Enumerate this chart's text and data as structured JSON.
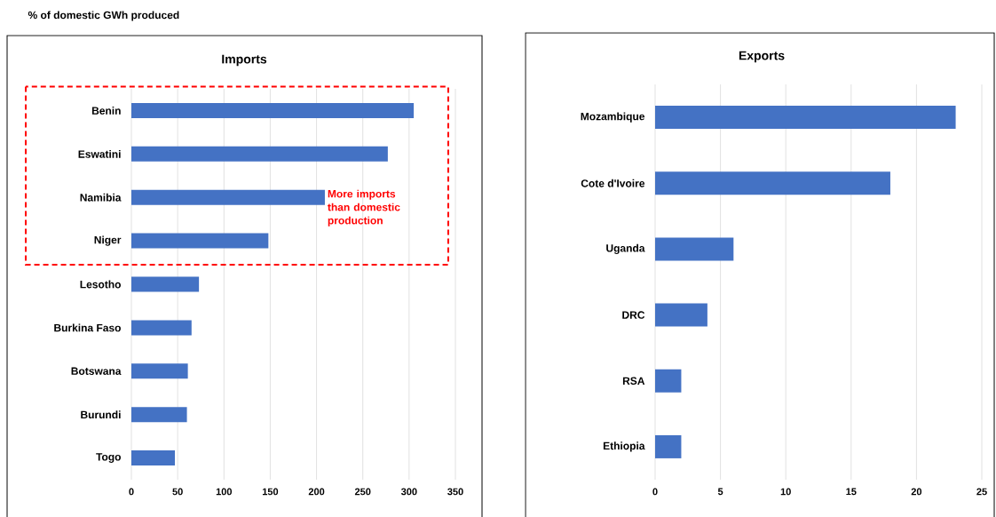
{
  "chart_data": [
    {
      "type": "bar",
      "orientation": "horizontal",
      "title": "Imports",
      "annotations": [
        "% of domestic GWh produced",
        "More imports than domestic production"
      ],
      "categories": [
        "Benin",
        "Eswatini",
        "Namibia",
        "Niger",
        "Lesotho",
        "Burkina Faso",
        "Botswana",
        "Burundi",
        "Togo"
      ],
      "values": [
        305,
        277,
        209,
        148,
        73,
        65,
        61,
        60,
        47
      ],
      "color": "#4472c4",
      "xlim": [
        0,
        350
      ],
      "xticks": [
        0,
        50,
        100,
        150,
        200,
        250,
        300,
        350
      ],
      "grid": "x"
    },
    {
      "type": "bar",
      "orientation": "horizontal",
      "title": "Exports",
      "categories": [
        "Mozambique",
        "Cote d'Ivoire",
        "Uganda",
        "DRC",
        "RSA",
        "Ethiopia"
      ],
      "values": [
        23,
        18,
        6,
        4,
        2,
        2
      ],
      "color": "#4472c4",
      "xlim": [
        0,
        25
      ],
      "xticks": [
        0,
        5,
        10,
        15,
        20,
        25
      ],
      "grid": "x"
    }
  ]
}
